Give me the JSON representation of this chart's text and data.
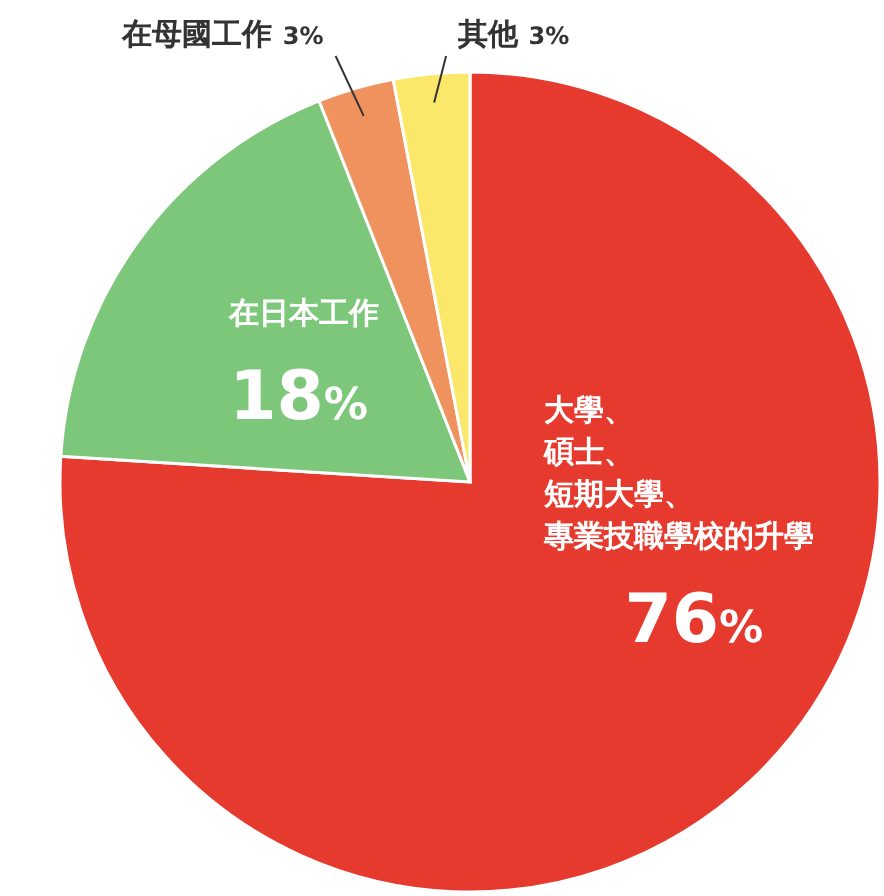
{
  "chart_data": {
    "type": "pie",
    "categories": [
      "大學、碩士、短期大學、專業技職學校的升學",
      "在日本工作",
      "在母國工作",
      "其他"
    ],
    "values": [
      76,
      18,
      3,
      3
    ],
    "value_labels": [
      "76%",
      "18%",
      "3%",
      "3%"
    ],
    "colors": [
      "#e63a2e",
      "#7cc77a",
      "#f0925e",
      "#fbe86a"
    ]
  }
}
